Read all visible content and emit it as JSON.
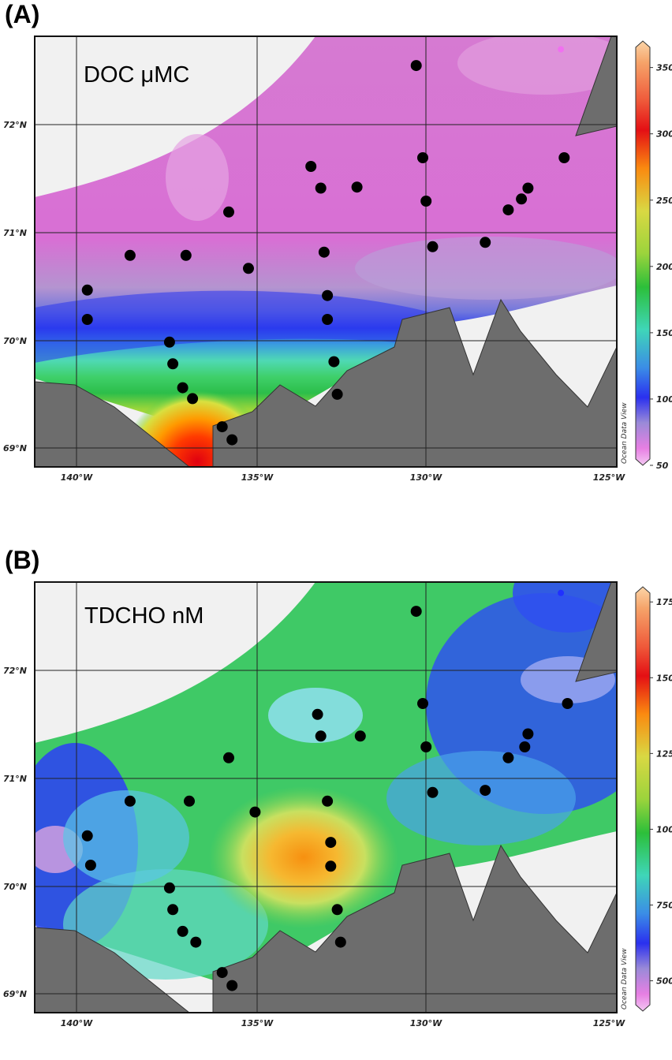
{
  "panels": [
    {
      "id": "A",
      "label": "(A)",
      "title": "DOC μMC",
      "lat_labels": [
        "72°N",
        "71°N",
        "70°N",
        "69°N"
      ],
      "lon_labels": [
        "140°W",
        "135°W",
        "130°W",
        "125°W"
      ],
      "colorbar": {
        "ticks": [
          "350",
          "300",
          "250",
          "200",
          "150",
          "100",
          "50"
        ],
        "values": [
          350,
          300,
          250,
          200,
          150,
          100,
          50
        ],
        "min": 50,
        "max": 370
      },
      "credit": "Ocean Data View",
      "stations": [
        [
          -131.0,
          72.55
        ],
        [
          -134.2,
          71.62
        ],
        [
          -133.9,
          71.42
        ],
        [
          -132.8,
          71.43
        ],
        [
          -130.8,
          71.7
        ],
        [
          -130.7,
          71.3
        ],
        [
          -130.5,
          70.88
        ],
        [
          -126.5,
          71.7
        ],
        [
          -127.6,
          71.42
        ],
        [
          -127.8,
          71.32
        ],
        [
          -128.2,
          71.22
        ],
        [
          -128.9,
          70.92
        ],
        [
          -136.7,
          71.2
        ],
        [
          -139.7,
          70.8
        ],
        [
          -138.0,
          70.8
        ],
        [
          -136.1,
          70.68
        ],
        [
          -133.8,
          70.83
        ],
        [
          -133.7,
          70.43
        ],
        [
          -133.7,
          70.21
        ],
        [
          -141.0,
          70.48
        ],
        [
          -141.0,
          70.21
        ],
        [
          -138.5,
          70.0
        ],
        [
          -138.4,
          69.8
        ],
        [
          -138.1,
          69.58
        ],
        [
          -137.8,
          69.48
        ],
        [
          -133.5,
          69.82
        ],
        [
          -133.4,
          69.52
        ],
        [
          -136.9,
          69.22
        ],
        [
          -136.6,
          69.1
        ]
      ],
      "marker_station": [
        -126.6,
        72.7
      ],
      "marker_color": "#f070f0"
    },
    {
      "id": "B",
      "label": "(B)",
      "title": "TDCHO nM",
      "lat_labels": [
        "72°N",
        "71°N",
        "70°N",
        "69°N"
      ],
      "lon_labels": [
        "140°W",
        "135°W",
        "130°W",
        "125°W"
      ],
      "colorbar": {
        "ticks": [
          "1750",
          "1500",
          "1250",
          "1000",
          "750",
          "500"
        ],
        "values": [
          1750,
          1500,
          1250,
          1000,
          750,
          500
        ],
        "min": 400,
        "max": 1800
      },
      "credit": "Ocean Data View",
      "stations": [
        [
          -131.0,
          72.55
        ],
        [
          -134.0,
          71.6
        ],
        [
          -133.9,
          71.4
        ],
        [
          -132.7,
          71.4
        ],
        [
          -130.8,
          71.7
        ],
        [
          -130.7,
          71.3
        ],
        [
          -130.5,
          70.88
        ],
        [
          -126.4,
          71.7
        ],
        [
          -127.6,
          71.42
        ],
        [
          -127.7,
          71.3
        ],
        [
          -128.2,
          71.2
        ],
        [
          -128.9,
          70.9
        ],
        [
          -136.7,
          71.2
        ],
        [
          -139.7,
          70.8
        ],
        [
          -137.9,
          70.8
        ],
        [
          -135.9,
          70.7
        ],
        [
          -133.7,
          70.8
        ],
        [
          -133.6,
          70.42
        ],
        [
          -133.6,
          70.2
        ],
        [
          -141.0,
          70.48
        ],
        [
          -140.9,
          70.21
        ],
        [
          -138.5,
          70.0
        ],
        [
          -138.4,
          69.8
        ],
        [
          -138.1,
          69.6
        ],
        [
          -137.7,
          69.5
        ],
        [
          -133.4,
          69.8
        ],
        [
          -133.3,
          69.5
        ],
        [
          -136.9,
          69.22
        ],
        [
          -136.6,
          69.1
        ]
      ],
      "marker_station": [
        -126.6,
        72.72
      ],
      "marker_color": "#2030ff"
    }
  ]
}
